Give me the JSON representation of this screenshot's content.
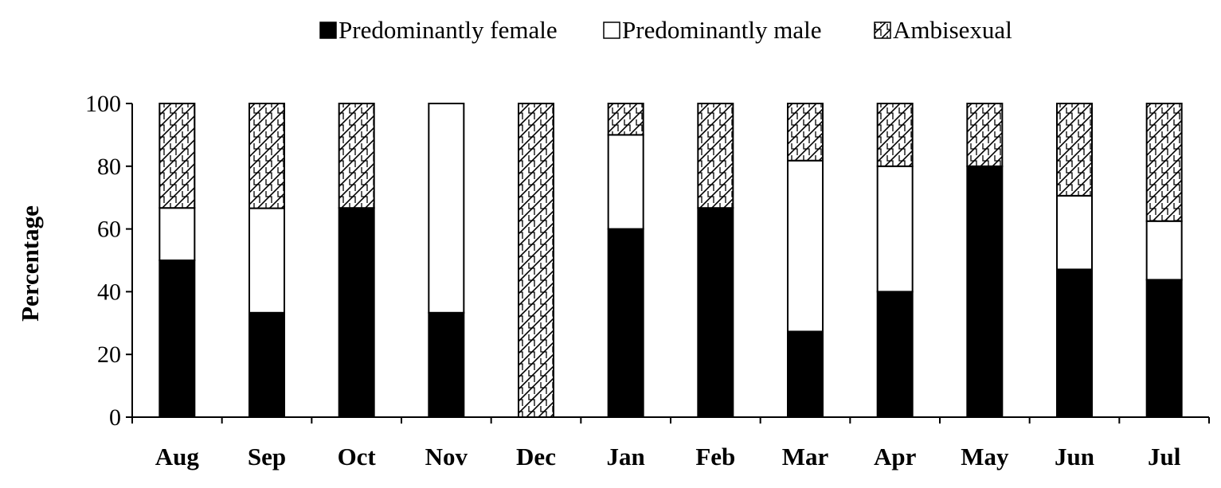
{
  "chart_data": {
    "type": "bar",
    "stacked": true,
    "title": "",
    "xlabel": "",
    "ylabel": "Percentage",
    "ylim": [
      0,
      100
    ],
    "yticks": [
      0,
      20,
      40,
      60,
      80,
      100
    ],
    "grid": false,
    "legend_position": "top",
    "categories": [
      "Aug",
      "Sep",
      "Oct",
      "Nov",
      "Dec",
      "Jan",
      "Feb",
      "Mar",
      "Apr",
      "May",
      "Jun",
      "Jul"
    ],
    "series": [
      {
        "name": "Predominantly female",
        "fill": "solid",
        "color": "#000000",
        "values": [
          50,
          33.3,
          66.7,
          33.3,
          0,
          60,
          66.7,
          27.3,
          40,
          80,
          47.1,
          43.8
        ]
      },
      {
        "name": "Predominantly male",
        "fill": "empty",
        "color": "#ffffff",
        "values": [
          16.7,
          33.3,
          0,
          66.7,
          0,
          30,
          0,
          54.5,
          40,
          0,
          23.5,
          18.7
        ]
      },
      {
        "name": "Ambisexual",
        "fill": "crosshatch",
        "color": "#ffffff",
        "values": [
          33.3,
          33.4,
          33.3,
          0,
          100,
          10,
          33.3,
          18.2,
          20,
          20,
          29.4,
          37.5
        ]
      }
    ]
  }
}
